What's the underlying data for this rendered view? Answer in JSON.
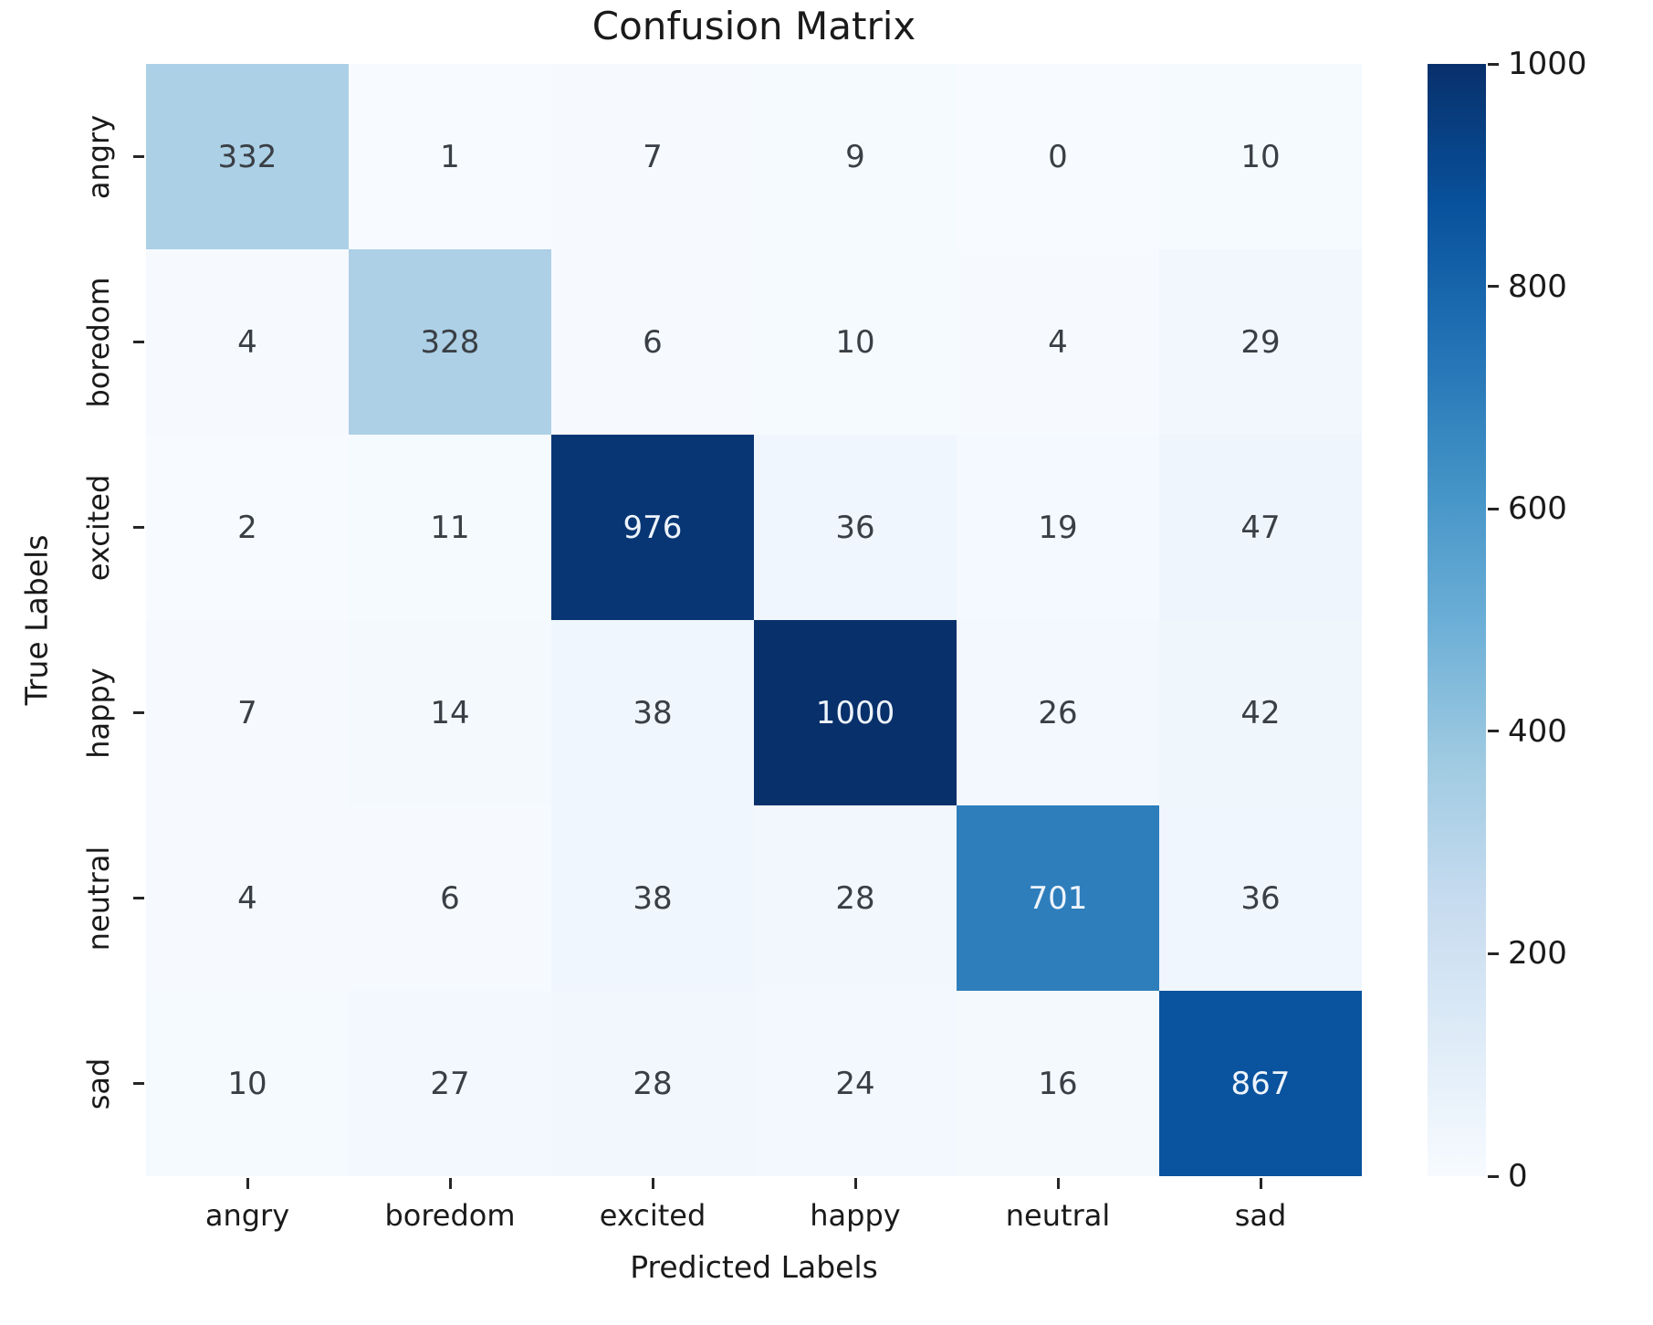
{
  "chart_data": {
    "type": "heatmap",
    "title": "Confusion Matrix",
    "xlabel": "Predicted Labels",
    "ylabel": "True Labels",
    "x_categories": [
      "angry",
      "boredom",
      "excited",
      "happy",
      "neutral",
      "sad"
    ],
    "y_categories": [
      "angry",
      "boredom",
      "excited",
      "happy",
      "neutral",
      "sad"
    ],
    "rows": [
      [
        332,
        1,
        7,
        9,
        0,
        10
      ],
      [
        4,
        328,
        6,
        10,
        4,
        29
      ],
      [
        2,
        11,
        976,
        36,
        19,
        47
      ],
      [
        7,
        14,
        38,
        1000,
        26,
        42
      ],
      [
        4,
        6,
        38,
        28,
        701,
        36
      ],
      [
        10,
        27,
        28,
        24,
        16,
        867
      ]
    ],
    "vmin": 0,
    "vmax": 1000,
    "colormap_name": "Blues",
    "colormap_stops": [
      [
        0.0,
        "#f7fbff"
      ],
      [
        0.125,
        "#deebf7"
      ],
      [
        0.25,
        "#c6dbef"
      ],
      [
        0.375,
        "#9ecae1"
      ],
      [
        0.5,
        "#6baed6"
      ],
      [
        0.625,
        "#4292c6"
      ],
      [
        0.75,
        "#2171b5"
      ],
      [
        0.875,
        "#08519c"
      ],
      [
        1.0,
        "#08306b"
      ]
    ],
    "colorbar_ticks": [
      1000,
      800,
      600,
      400,
      200,
      0
    ],
    "legend_position": "right-colorbar",
    "grid": false
  }
}
